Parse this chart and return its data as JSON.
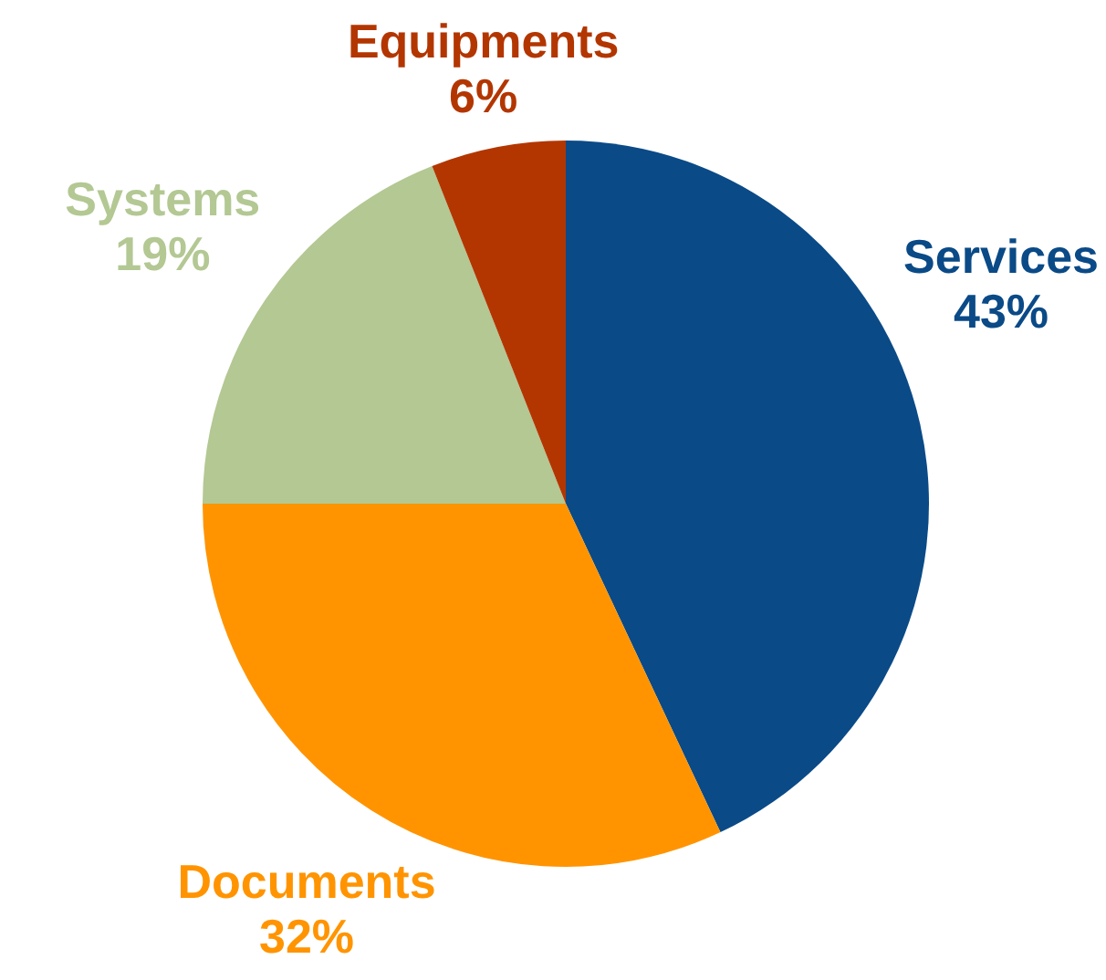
{
  "chart_data": {
    "type": "pie",
    "categories": [
      "Services",
      "Documents",
      "Systems",
      "Equipments"
    ],
    "values": [
      43,
      32,
      19,
      6
    ],
    "colors": [
      "#0a4a87",
      "#ff9400",
      "#b3c893",
      "#b33600"
    ],
    "value_labels": [
      "43%",
      "32%",
      "19%",
      "6%"
    ]
  }
}
